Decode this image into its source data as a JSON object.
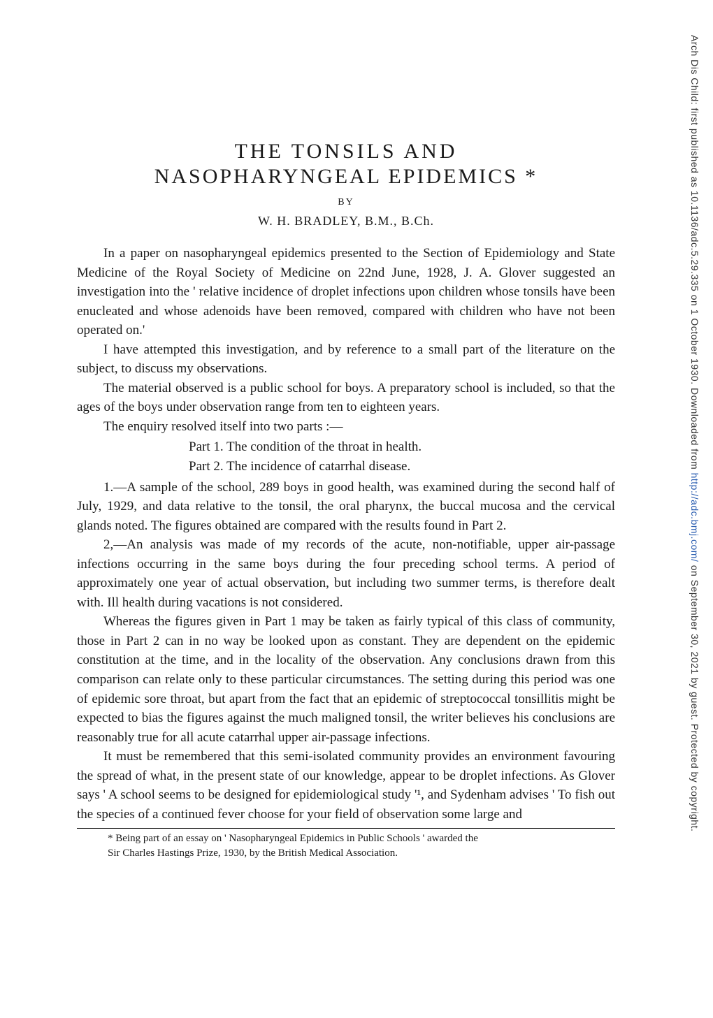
{
  "sidebar": {
    "prefix": "Arch Dis Child: first published as 10.1136/adc.5.29.335 on 1 October 1930. Downloaded from ",
    "url_text": "http://adc.bmj.com/",
    "suffix": " on September 30, 2021 by guest. Protected by copyright."
  },
  "title": {
    "line1": "THE   TONSILS   AND",
    "line2": "NASOPHARYNGEAL   EPIDEMICS *"
  },
  "by": "BY",
  "author": "W. H. BRADLEY, B.M., B.Ch.",
  "paragraphs": {
    "p1": "In a paper on nasopharyngeal epidemics presented to the Section of Epidemiology and State Medicine of the Royal Society of Medicine on 22nd June, 1928, J. A. Glover suggested an investigation into the ' relative incidence of droplet infections upon children whose tonsils have been enucleated and whose adenoids have been removed, compared with children who have not been operated on.'",
    "p2": "I have attempted this investigation, and by reference to a small part of the literature on the subject, to discuss my observations.",
    "p3": "The material observed is a public school for boys.   A preparatory school is included, so that the ages of the boys under observation range from ten to eighteen years.",
    "p4": "The enquiry resolved itself into two parts :—",
    "part1": "Part 1.   The condition of the throat in health.",
    "part2": "Part 2.   The incidence of catarrhal disease.",
    "p5": "1.—A sample of the school, 289 boys in good health, was examined during the second half of July, 1929, and data relative to the tonsil, the oral pharynx, the buccal mucosa and the cervical glands noted.   The figures obtained are compared with the results found in Part 2.",
    "p6": "2,—An analysis was made of my records of the acute, non-notifiable, upper air-passage infections occurring in the same boys during the four preceding school terms.   A period of approximately one year of actual observation, but including two summer terms, is therefore dealt with.   Ill health during vacations is not considered.",
    "p7": "Whereas the figures given in Part 1 may be taken as fairly typical of this class of community, those in Part 2 can in no way be looked upon as constant. They are dependent on the epidemic constitution at the time, and in the locality of the observation.   Any conclusions drawn from this comparison can relate only to these particular circumstances.   The setting during this period was one of epidemic sore throat, but apart from the fact that an epidemic of streptococcal tonsillitis might be expected to bias the figures against the much maligned tonsil, the writer believes his conclusions are reasonably true for all acute catarrhal upper air-passage infections.",
    "p8": "It must be remembered that this semi-isolated community provides an environment favouring the spread of what, in the present state of our knowledge, appear to be droplet infections.   As Glover says ' A school seems to be designed for epidemiological study '¹, and Sydenham advises ' To fish out the species of a continued fever choose for your field of observation some large and"
  },
  "footnote": {
    "line1": "* Being part of an essay on ' Nasopharyngeal Epidemics in Public Schools ' awarded the",
    "line2": "Sir Charles Hastings Prize, 1930, by the British Medical Association."
  }
}
